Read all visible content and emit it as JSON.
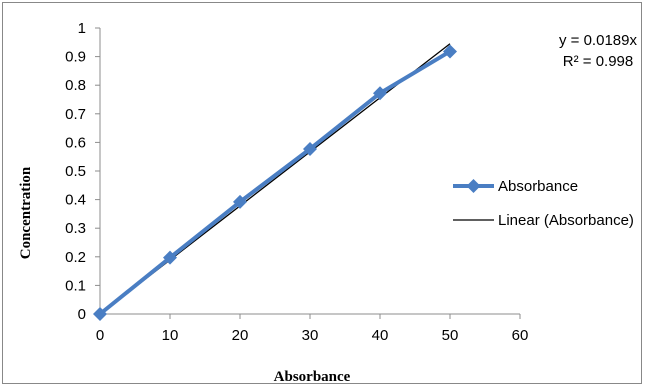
{
  "chart_data": {
    "type": "scatter",
    "xlabel": "Absorbance",
    "ylabel": "Concentration",
    "xlim": [
      0,
      60
    ],
    "ylim": [
      0,
      1
    ],
    "x_ticks": [
      "0",
      "10",
      "20",
      "30",
      "40",
      "50",
      "60"
    ],
    "y_ticks": [
      "0",
      "0.1",
      "0.2",
      "0.3",
      "0.4",
      "0.5",
      "0.6",
      "0.7",
      "0.8",
      "0.9",
      "1"
    ],
    "grid": false,
    "legend_position": "right",
    "series": [
      {
        "name": "Absorbance",
        "x": [
          0,
          10,
          20,
          30,
          40,
          50
        ],
        "y": [
          0,
          0.197,
          0.392,
          0.577,
          0.772,
          0.918
        ],
        "color": "#4a7ec3",
        "marker": "diamond"
      }
    ],
    "trendline": {
      "name": "Linear (Absorbance)",
      "slope": 0.0189,
      "x_range": [
        0,
        50
      ],
      "color": "#000000",
      "equation": "y = 0.0189x",
      "r_squared": "R² = 0.998"
    }
  }
}
